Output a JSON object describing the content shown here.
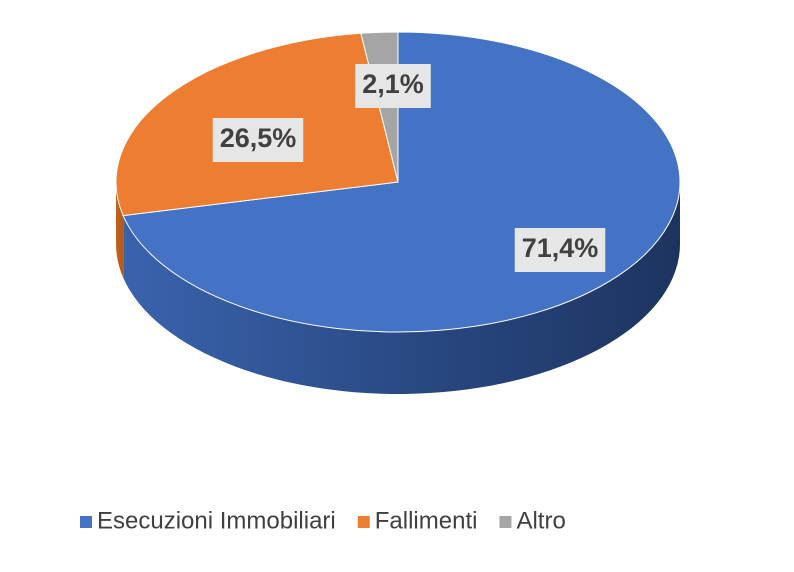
{
  "chart_data": {
    "type": "pie",
    "categories": [
      "Esecuzioni Immobiliari",
      "Fallimenti",
      "Altro"
    ],
    "values": [
      71.4,
      26.5,
      2.1
    ],
    "value_labels": [
      "71,4%",
      "26,5%",
      "2,1%"
    ],
    "colors": [
      "#4472c4",
      "#ed7d31",
      "#a5a5a5"
    ],
    "legend": "bottom"
  }
}
